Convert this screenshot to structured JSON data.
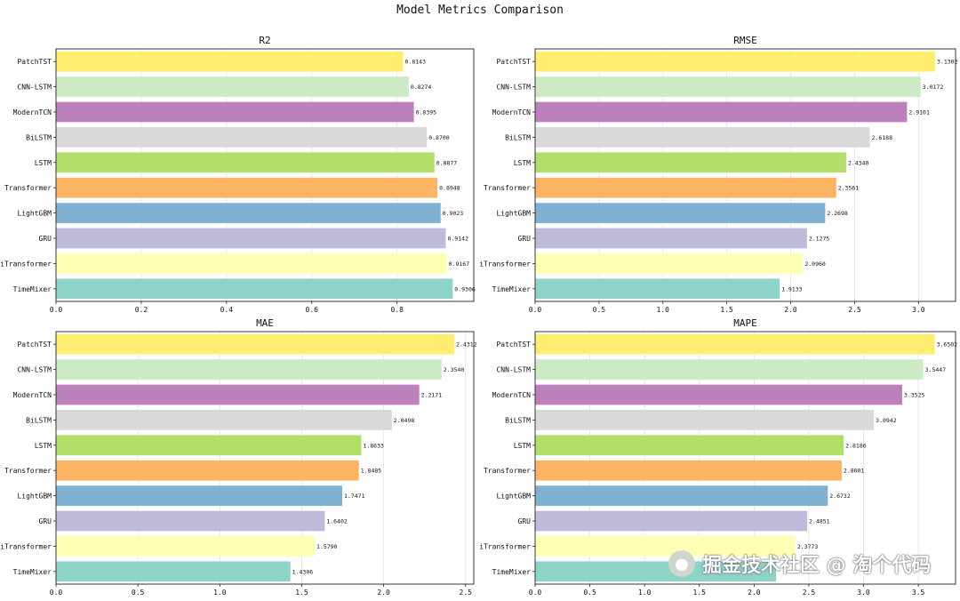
{
  "suptitle": "Model Metrics Comparison",
  "chart_data": [
    {
      "type": "bar",
      "orientation": "horizontal",
      "title": "R2",
      "categories": [
        "TimeMixer",
        "iTransformer",
        "GRU",
        "LightGBM",
        "Transformer",
        "LSTM",
        "BiLSTM",
        "ModernTCN",
        "CNN-LSTM",
        "PatchTST"
      ],
      "values": [
        0.9306,
        0.9167,
        0.9142,
        0.9023,
        0.8948,
        0.8877,
        0.87,
        0.8395,
        0.8274,
        0.8143
      ],
      "labels": [
        "0.9306",
        "0.9167",
        "0.9142",
        "0.9023",
        "0.8948",
        "0.8877",
        "0.8700",
        "0.8395",
        "0.8274",
        "0.8143"
      ],
      "xlim": [
        0,
        0.98
      ],
      "xticks": [
        0,
        0.2,
        0.4,
        0.6,
        0.8
      ],
      "xtick_labels": [
        "0.0",
        "0.2",
        "0.4",
        "0.6",
        "0.8"
      ],
      "grid": "x"
    },
    {
      "type": "bar",
      "orientation": "horizontal",
      "title": "RMSE",
      "categories": [
        "TimeMixer",
        "iTransformer",
        "GRU",
        "LightGBM",
        "Transformer",
        "LSTM",
        "BiLSTM",
        "ModernTCN",
        "CNN-LSTM",
        "PatchTST"
      ],
      "values": [
        1.9133,
        2.096,
        2.1275,
        2.2698,
        2.3561,
        2.434,
        2.6188,
        2.9101,
        3.0172,
        3.1302
      ],
      "labels": [
        "1.9133",
        "2.0960",
        "2.1275",
        "2.2698",
        "2.3561",
        "2.4340",
        "2.6188",
        "2.9101",
        "3.0172",
        "3.1302"
      ],
      "xlim": [
        0,
        3.29
      ],
      "xticks": [
        0,
        0.5,
        1.0,
        1.5,
        2.0,
        2.5,
        3.0
      ],
      "xtick_labels": [
        "0.0",
        "0.5",
        "1.0",
        "1.5",
        "2.0",
        "2.5",
        "3.0"
      ],
      "grid": "x"
    },
    {
      "type": "bar",
      "orientation": "horizontal",
      "title": "MAE",
      "categories": [
        "TimeMixer",
        "iTransformer",
        "GRU",
        "LightGBM",
        "Transformer",
        "LSTM",
        "BiLSTM",
        "ModernTCN",
        "CNN-LSTM",
        "PatchTST"
      ],
      "values": [
        1.4306,
        1.579,
        1.6402,
        1.7471,
        1.8485,
        1.8633,
        2.0498,
        2.2171,
        2.354,
        2.4312
      ],
      "labels": [
        "1.4306",
        "1.5790",
        "1.6402",
        "1.7471",
        "1.8485",
        "1.8633",
        "2.0498",
        "2.2171",
        "2.3540",
        "2.4312"
      ],
      "xlim": [
        0,
        2.55
      ],
      "xticks": [
        0,
        0.5,
        1.0,
        1.5,
        2.0,
        2.5
      ],
      "xtick_labels": [
        "0.0",
        "0.5",
        "1.0",
        "1.5",
        "2.0",
        "2.5"
      ],
      "grid": "x"
    },
    {
      "type": "bar",
      "orientation": "horizontal",
      "title": "MAPE",
      "categories": [
        "TimeMixer",
        "iTransformer",
        "GRU",
        "LightGBM",
        "Transformer",
        "LSTM",
        "BiLSTM",
        "ModernTCN",
        "CNN-LSTM",
        "PatchTST"
      ],
      "values": [
        2.2,
        2.3773,
        2.4851,
        2.6732,
        2.8001,
        2.8186,
        3.0942,
        3.3525,
        3.5447,
        3.6502
      ],
      "labels": [
        "",
        "2.3773",
        "2.4851",
        "2.6732",
        "2.8001",
        "2.8186",
        "3.0942",
        "3.3525",
        "3.5447",
        "3.6502"
      ],
      "xlim": [
        0,
        3.84
      ],
      "xticks": [
        0,
        0.5,
        1.0,
        1.5,
        2.0,
        2.5,
        3.0,
        3.5
      ],
      "xtick_labels": [
        "0.0",
        "0.5",
        "1.0",
        "1.5",
        "2.0",
        "2.5",
        "3.0",
        "3.5"
      ],
      "grid": "x"
    }
  ],
  "bar_colors": [
    "#8dd3c7",
    "#ffffb3",
    "#bebada",
    "#80b1d3",
    "#fdb462",
    "#b3de69",
    "#d9d9d9",
    "#bc80bd",
    "#ccebc5",
    "#ffed6f"
  ],
  "watermark": {
    "text": "掘金技术社区 @ 淘个代码",
    "logo_icon": "wechat-icon"
  }
}
